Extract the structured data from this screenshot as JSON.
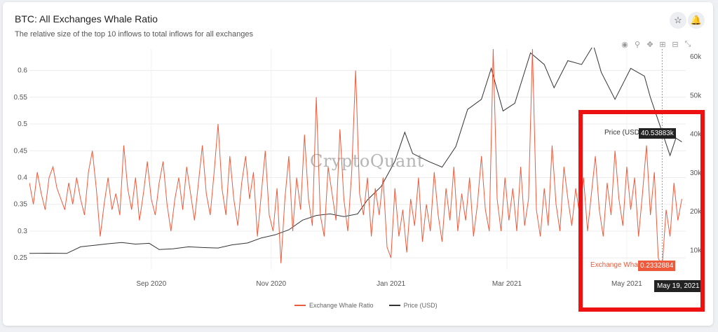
{
  "header": {
    "title": "BTC: All Exchanges Whale Ratio",
    "subtitle": "The relative size of the top 10 inflows to total inflows for all exchanges",
    "star_icon": "star-icon",
    "bell_icon": "bell-icon"
  },
  "toolbar": {
    "icons": [
      "camera-icon",
      "zoom-icon",
      "pan-icon",
      "zoom-in-icon",
      "zoom-out-icon",
      "autoscale-icon"
    ]
  },
  "watermark": "CryptoQuant",
  "tooltip": {
    "price_label": "Price (USD)",
    "price_value": "40.53883k",
    "ratio_label": "Exchange Wha...",
    "ratio_value": "0.2332884",
    "date": "May 19, 2021"
  },
  "colors": {
    "ratio": "#ee5a3c",
    "price": "#333333",
    "highlight": "#ee1111"
  },
  "chart_data": {
    "type": "line",
    "x_range": [
      "2020-07-01",
      "2021-05-31"
    ],
    "x_ticks": [
      "Sep 2020",
      "Nov 2020",
      "Jan 2021",
      "Mar 2021",
      "May 2021"
    ],
    "y_left": {
      "ticks": [
        "0.25",
        "0.3",
        "0.35",
        "0.4",
        "0.45",
        "0.5",
        "0.55",
        "0.6"
      ],
      "range": [
        0.228,
        0.64
      ]
    },
    "y_right": {
      "ticks": [
        "10k",
        "20k",
        "30k",
        "40k",
        "50k",
        "60k"
      ],
      "range": [
        5000,
        62000
      ]
    },
    "grid": true,
    "legend_position": "bottom",
    "series": [
      {
        "name": "Exchange Whale Ratio",
        "axis": "left",
        "color": "#ee5a3c",
        "points": [
          [
            "2020-07-01",
            0.39
          ],
          [
            "2020-07-03",
            0.35
          ],
          [
            "2020-07-05",
            0.41
          ],
          [
            "2020-07-07",
            0.37
          ],
          [
            "2020-07-09",
            0.34
          ],
          [
            "2020-07-11",
            0.4
          ],
          [
            "2020-07-13",
            0.42
          ],
          [
            "2020-07-15",
            0.38
          ],
          [
            "2020-07-17",
            0.36
          ],
          [
            "2020-07-19",
            0.34
          ],
          [
            "2020-07-21",
            0.39
          ],
          [
            "2020-07-23",
            0.35
          ],
          [
            "2020-07-25",
            0.4
          ],
          [
            "2020-07-27",
            0.36
          ],
          [
            "2020-07-29",
            0.33
          ],
          [
            "2020-07-31",
            0.41
          ],
          [
            "2020-08-02",
            0.45
          ],
          [
            "2020-08-04",
            0.38
          ],
          [
            "2020-08-06",
            0.29
          ],
          [
            "2020-08-08",
            0.35
          ],
          [
            "2020-08-10",
            0.4
          ],
          [
            "2020-08-12",
            0.34
          ],
          [
            "2020-08-14",
            0.37
          ],
          [
            "2020-08-16",
            0.33
          ],
          [
            "2020-08-18",
            0.46
          ],
          [
            "2020-08-20",
            0.38
          ],
          [
            "2020-08-22",
            0.34
          ],
          [
            "2020-08-24",
            0.4
          ],
          [
            "2020-08-26",
            0.32
          ],
          [
            "2020-08-28",
            0.37
          ],
          [
            "2020-08-30",
            0.43
          ],
          [
            "2020-09-01",
            0.36
          ],
          [
            "2020-09-03",
            0.33
          ],
          [
            "2020-09-05",
            0.39
          ],
          [
            "2020-09-07",
            0.43
          ],
          [
            "2020-09-09",
            0.35
          ],
          [
            "2020-09-11",
            0.3
          ],
          [
            "2020-09-13",
            0.36
          ],
          [
            "2020-09-15",
            0.4
          ],
          [
            "2020-09-17",
            0.34
          ],
          [
            "2020-09-19",
            0.42
          ],
          [
            "2020-09-21",
            0.37
          ],
          [
            "2020-09-23",
            0.32
          ],
          [
            "2020-09-25",
            0.39
          ],
          [
            "2020-09-27",
            0.46
          ],
          [
            "2020-09-29",
            0.37
          ],
          [
            "2020-10-01",
            0.33
          ],
          [
            "2020-10-03",
            0.41
          ],
          [
            "2020-10-05",
            0.5
          ],
          [
            "2020-10-07",
            0.38
          ],
          [
            "2020-10-09",
            0.33
          ],
          [
            "2020-10-11",
            0.44
          ],
          [
            "2020-10-13",
            0.36
          ],
          [
            "2020-10-15",
            0.31
          ],
          [
            "2020-10-17",
            0.39
          ],
          [
            "2020-10-19",
            0.44
          ],
          [
            "2020-10-21",
            0.36
          ],
          [
            "2020-10-23",
            0.41
          ],
          [
            "2020-10-25",
            0.29
          ],
          [
            "2020-10-27",
            0.37
          ],
          [
            "2020-10-29",
            0.45
          ],
          [
            "2020-10-31",
            0.33
          ],
          [
            "2020-11-02",
            0.3
          ],
          [
            "2020-11-04",
            0.38
          ],
          [
            "2020-11-06",
            0.24
          ],
          [
            "2020-11-08",
            0.36
          ],
          [
            "2020-11-10",
            0.44
          ],
          [
            "2020-11-12",
            0.3
          ],
          [
            "2020-11-14",
            0.4
          ],
          [
            "2020-11-16",
            0.34
          ],
          [
            "2020-11-18",
            0.48
          ],
          [
            "2020-11-20",
            0.36
          ],
          [
            "2020-11-22",
            0.31
          ],
          [
            "2020-11-24",
            0.55
          ],
          [
            "2020-11-26",
            0.33
          ],
          [
            "2020-11-28",
            0.29
          ],
          [
            "2020-11-30",
            0.42
          ],
          [
            "2020-12-02",
            0.37
          ],
          [
            "2020-12-04",
            0.32
          ],
          [
            "2020-12-06",
            0.49
          ],
          [
            "2020-12-08",
            0.36
          ],
          [
            "2020-12-10",
            0.3
          ],
          [
            "2020-12-12",
            0.41
          ],
          [
            "2020-12-14",
            0.6
          ],
          [
            "2020-12-16",
            0.37
          ],
          [
            "2020-12-18",
            0.33
          ],
          [
            "2020-12-20",
            0.4
          ],
          [
            "2020-12-22",
            0.29
          ],
          [
            "2020-12-24",
            0.38
          ],
          [
            "2020-12-26",
            0.33
          ],
          [
            "2020-12-28",
            0.4
          ],
          [
            "2020-12-30",
            0.27
          ],
          [
            "2021-01-01",
            0.25
          ],
          [
            "2021-01-03",
            0.38
          ],
          [
            "2021-01-05",
            0.29
          ],
          [
            "2021-01-07",
            0.34
          ],
          [
            "2021-01-09",
            0.26
          ],
          [
            "2021-01-11",
            0.36
          ],
          [
            "2021-01-13",
            0.31
          ],
          [
            "2021-01-15",
            0.4
          ],
          [
            "2021-01-17",
            0.28
          ],
          [
            "2021-01-19",
            0.35
          ],
          [
            "2021-01-21",
            0.3
          ],
          [
            "2021-01-23",
            0.41
          ],
          [
            "2021-01-25",
            0.33
          ],
          [
            "2021-01-27",
            0.28
          ],
          [
            "2021-01-29",
            0.38
          ],
          [
            "2021-01-31",
            0.32
          ],
          [
            "2021-02-02",
            0.42
          ],
          [
            "2021-02-04",
            0.3
          ],
          [
            "2021-02-06",
            0.37
          ],
          [
            "2021-02-08",
            0.32
          ],
          [
            "2021-02-10",
            0.4
          ],
          [
            "2021-02-12",
            0.29
          ],
          [
            "2021-02-14",
            0.35
          ],
          [
            "2021-02-16",
            0.44
          ],
          [
            "2021-02-18",
            0.34
          ],
          [
            "2021-02-20",
            0.3
          ],
          [
            "2021-02-22",
            0.64
          ],
          [
            "2021-02-24",
            0.36
          ],
          [
            "2021-02-26",
            0.3
          ],
          [
            "2021-02-28",
            0.4
          ],
          [
            "2021-03-02",
            0.32
          ],
          [
            "2021-03-04",
            0.38
          ],
          [
            "2021-03-06",
            0.3
          ],
          [
            "2021-03-08",
            0.42
          ],
          [
            "2021-03-10",
            0.31
          ],
          [
            "2021-03-12",
            0.36
          ],
          [
            "2021-03-14",
            0.64
          ],
          [
            "2021-03-16",
            0.34
          ],
          [
            "2021-03-18",
            0.29
          ],
          [
            "2021-03-20",
            0.38
          ],
          [
            "2021-03-22",
            0.31
          ],
          [
            "2021-03-24",
            0.46
          ],
          [
            "2021-03-26",
            0.35
          ],
          [
            "2021-03-28",
            0.3
          ],
          [
            "2021-03-30",
            0.42
          ],
          [
            "2021-04-01",
            0.36
          ],
          [
            "2021-04-03",
            0.31
          ],
          [
            "2021-04-05",
            0.38
          ],
          [
            "2021-04-07",
            0.33
          ],
          [
            "2021-04-09",
            0.4
          ],
          [
            "2021-04-11",
            0.3
          ],
          [
            "2021-04-13",
            0.37
          ],
          [
            "2021-04-15",
            0.44
          ],
          [
            "2021-04-17",
            0.34
          ],
          [
            "2021-04-19",
            0.29
          ],
          [
            "2021-04-21",
            0.39
          ],
          [
            "2021-04-23",
            0.33
          ],
          [
            "2021-04-25",
            0.45
          ],
          [
            "2021-04-27",
            0.36
          ],
          [
            "2021-04-29",
            0.31
          ],
          [
            "2021-05-01",
            0.42
          ],
          [
            "2021-05-03",
            0.34
          ],
          [
            "2021-05-05",
            0.4
          ],
          [
            "2021-05-07",
            0.29
          ],
          [
            "2021-05-09",
            0.37
          ],
          [
            "2021-05-11",
            0.46
          ],
          [
            "2021-05-13",
            0.33
          ],
          [
            "2021-05-15",
            0.41
          ],
          [
            "2021-05-17",
            0.25
          ],
          [
            "2021-05-19",
            0.2332884
          ],
          [
            "2021-05-21",
            0.34
          ],
          [
            "2021-05-23",
            0.29
          ],
          [
            "2021-05-25",
            0.39
          ],
          [
            "2021-05-27",
            0.32
          ],
          [
            "2021-05-29",
            0.36
          ]
        ]
      },
      {
        "name": "Price (USD)",
        "axis": "right",
        "color": "#333333",
        "points": [
          [
            "2020-07-01",
            9200
          ],
          [
            "2020-07-10",
            9250
          ],
          [
            "2020-07-20",
            9200
          ],
          [
            "2020-07-27",
            10900
          ],
          [
            "2020-08-03",
            11300
          ],
          [
            "2020-08-10",
            11700
          ],
          [
            "2020-08-17",
            12000
          ],
          [
            "2020-08-24",
            11600
          ],
          [
            "2020-08-31",
            11800
          ],
          [
            "2020-09-05",
            10200
          ],
          [
            "2020-09-12",
            10400
          ],
          [
            "2020-09-20",
            10900
          ],
          [
            "2020-09-28",
            10700
          ],
          [
            "2020-10-05",
            10600
          ],
          [
            "2020-10-12",
            11400
          ],
          [
            "2020-10-20",
            11900
          ],
          [
            "2020-10-27",
            13200
          ],
          [
            "2020-11-03",
            14000
          ],
          [
            "2020-11-10",
            15300
          ],
          [
            "2020-11-17",
            17800
          ],
          [
            "2020-11-24",
            19000
          ],
          [
            "2020-12-01",
            19400
          ],
          [
            "2020-12-08",
            18700
          ],
          [
            "2020-12-15",
            19400
          ],
          [
            "2020-12-20",
            23000
          ],
          [
            "2020-12-27",
            26500
          ],
          [
            "2021-01-03",
            33000
          ],
          [
            "2021-01-08",
            40500
          ],
          [
            "2021-01-12",
            35000
          ],
          [
            "2021-01-20",
            33000
          ],
          [
            "2021-01-27",
            31500
          ],
          [
            "2021-02-03",
            36800
          ],
          [
            "2021-02-09",
            46400
          ],
          [
            "2021-02-16",
            49000
          ],
          [
            "2021-02-21",
            57000
          ],
          [
            "2021-02-27",
            46000
          ],
          [
            "2021-03-05",
            48000
          ],
          [
            "2021-03-13",
            61000
          ],
          [
            "2021-03-20",
            58000
          ],
          [
            "2021-03-25",
            52000
          ],
          [
            "2021-04-01",
            59000
          ],
          [
            "2021-04-08",
            58000
          ],
          [
            "2021-04-14",
            63000
          ],
          [
            "2021-04-18",
            56000
          ],
          [
            "2021-04-25",
            49000
          ],
          [
            "2021-05-03",
            57000
          ],
          [
            "2021-05-10",
            55000
          ],
          [
            "2021-05-13",
            49500
          ],
          [
            "2021-05-17",
            43500
          ],
          [
            "2021-05-19",
            40538.83
          ],
          [
            "2021-05-23",
            34500
          ],
          [
            "2021-05-26",
            39000
          ],
          [
            "2021-05-29",
            38000
          ]
        ]
      }
    ]
  }
}
